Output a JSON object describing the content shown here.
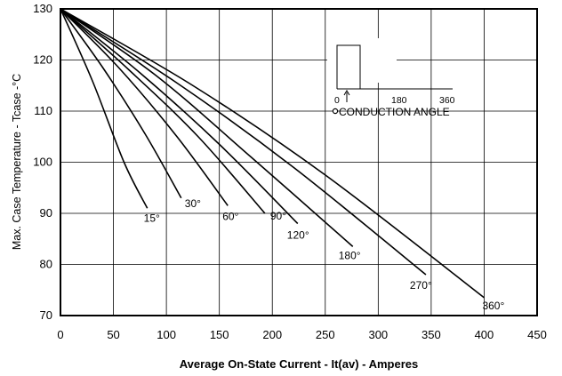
{
  "chart_data": {
    "type": "line",
    "title": "",
    "xlabel": "Average On-State Current - It(av) - Amperes",
    "ylabel": "Max. Case Temperature - Tcase -°C",
    "xlim": [
      0,
      450
    ],
    "ylim": [
      70,
      130
    ],
    "xticks": [
      "0",
      "50",
      "100",
      "150",
      "200",
      "250",
      "300",
      "350",
      "400",
      "450"
    ],
    "yticks": [
      "70",
      "80",
      "90",
      "100",
      "110",
      "120",
      "130"
    ],
    "grid": true,
    "series": [
      {
        "name": "15°",
        "x": [
          0,
          30,
          60,
          82
        ],
        "y": [
          130,
          116,
          100,
          91
        ]
      },
      {
        "name": "30°",
        "x": [
          0,
          40,
          80,
          114
        ],
        "y": [
          130,
          118.5,
          105.5,
          93
        ]
      },
      {
        "name": "60°",
        "x": [
          0,
          55,
          110,
          158
        ],
        "y": [
          130,
          118.5,
          105,
          91.5
        ]
      },
      {
        "name": "90°",
        "x": [
          0,
          65,
          130,
          193
        ],
        "y": [
          130,
          118,
          105,
          90
        ]
      },
      {
        "name": "120°",
        "x": [
          0,
          75,
          150,
          224
        ],
        "y": [
          130,
          117.5,
          103.5,
          88
        ]
      },
      {
        "name": "180°",
        "x": [
          0,
          90,
          180,
          276
        ],
        "y": [
          130,
          117,
          101,
          83.5
        ]
      },
      {
        "name": "270°",
        "x": [
          0,
          110,
          220,
          345
        ],
        "y": [
          130,
          115.5,
          99,
          78
        ]
      },
      {
        "name": "360°",
        "x": [
          0,
          125,
          250,
          400
        ],
        "y": [
          130,
          115,
          97.5,
          73.5
        ]
      }
    ],
    "inset": {
      "ticks": [
        "0",
        "180",
        "360"
      ],
      "caption": "CONDUCTION ANGLE"
    }
  }
}
